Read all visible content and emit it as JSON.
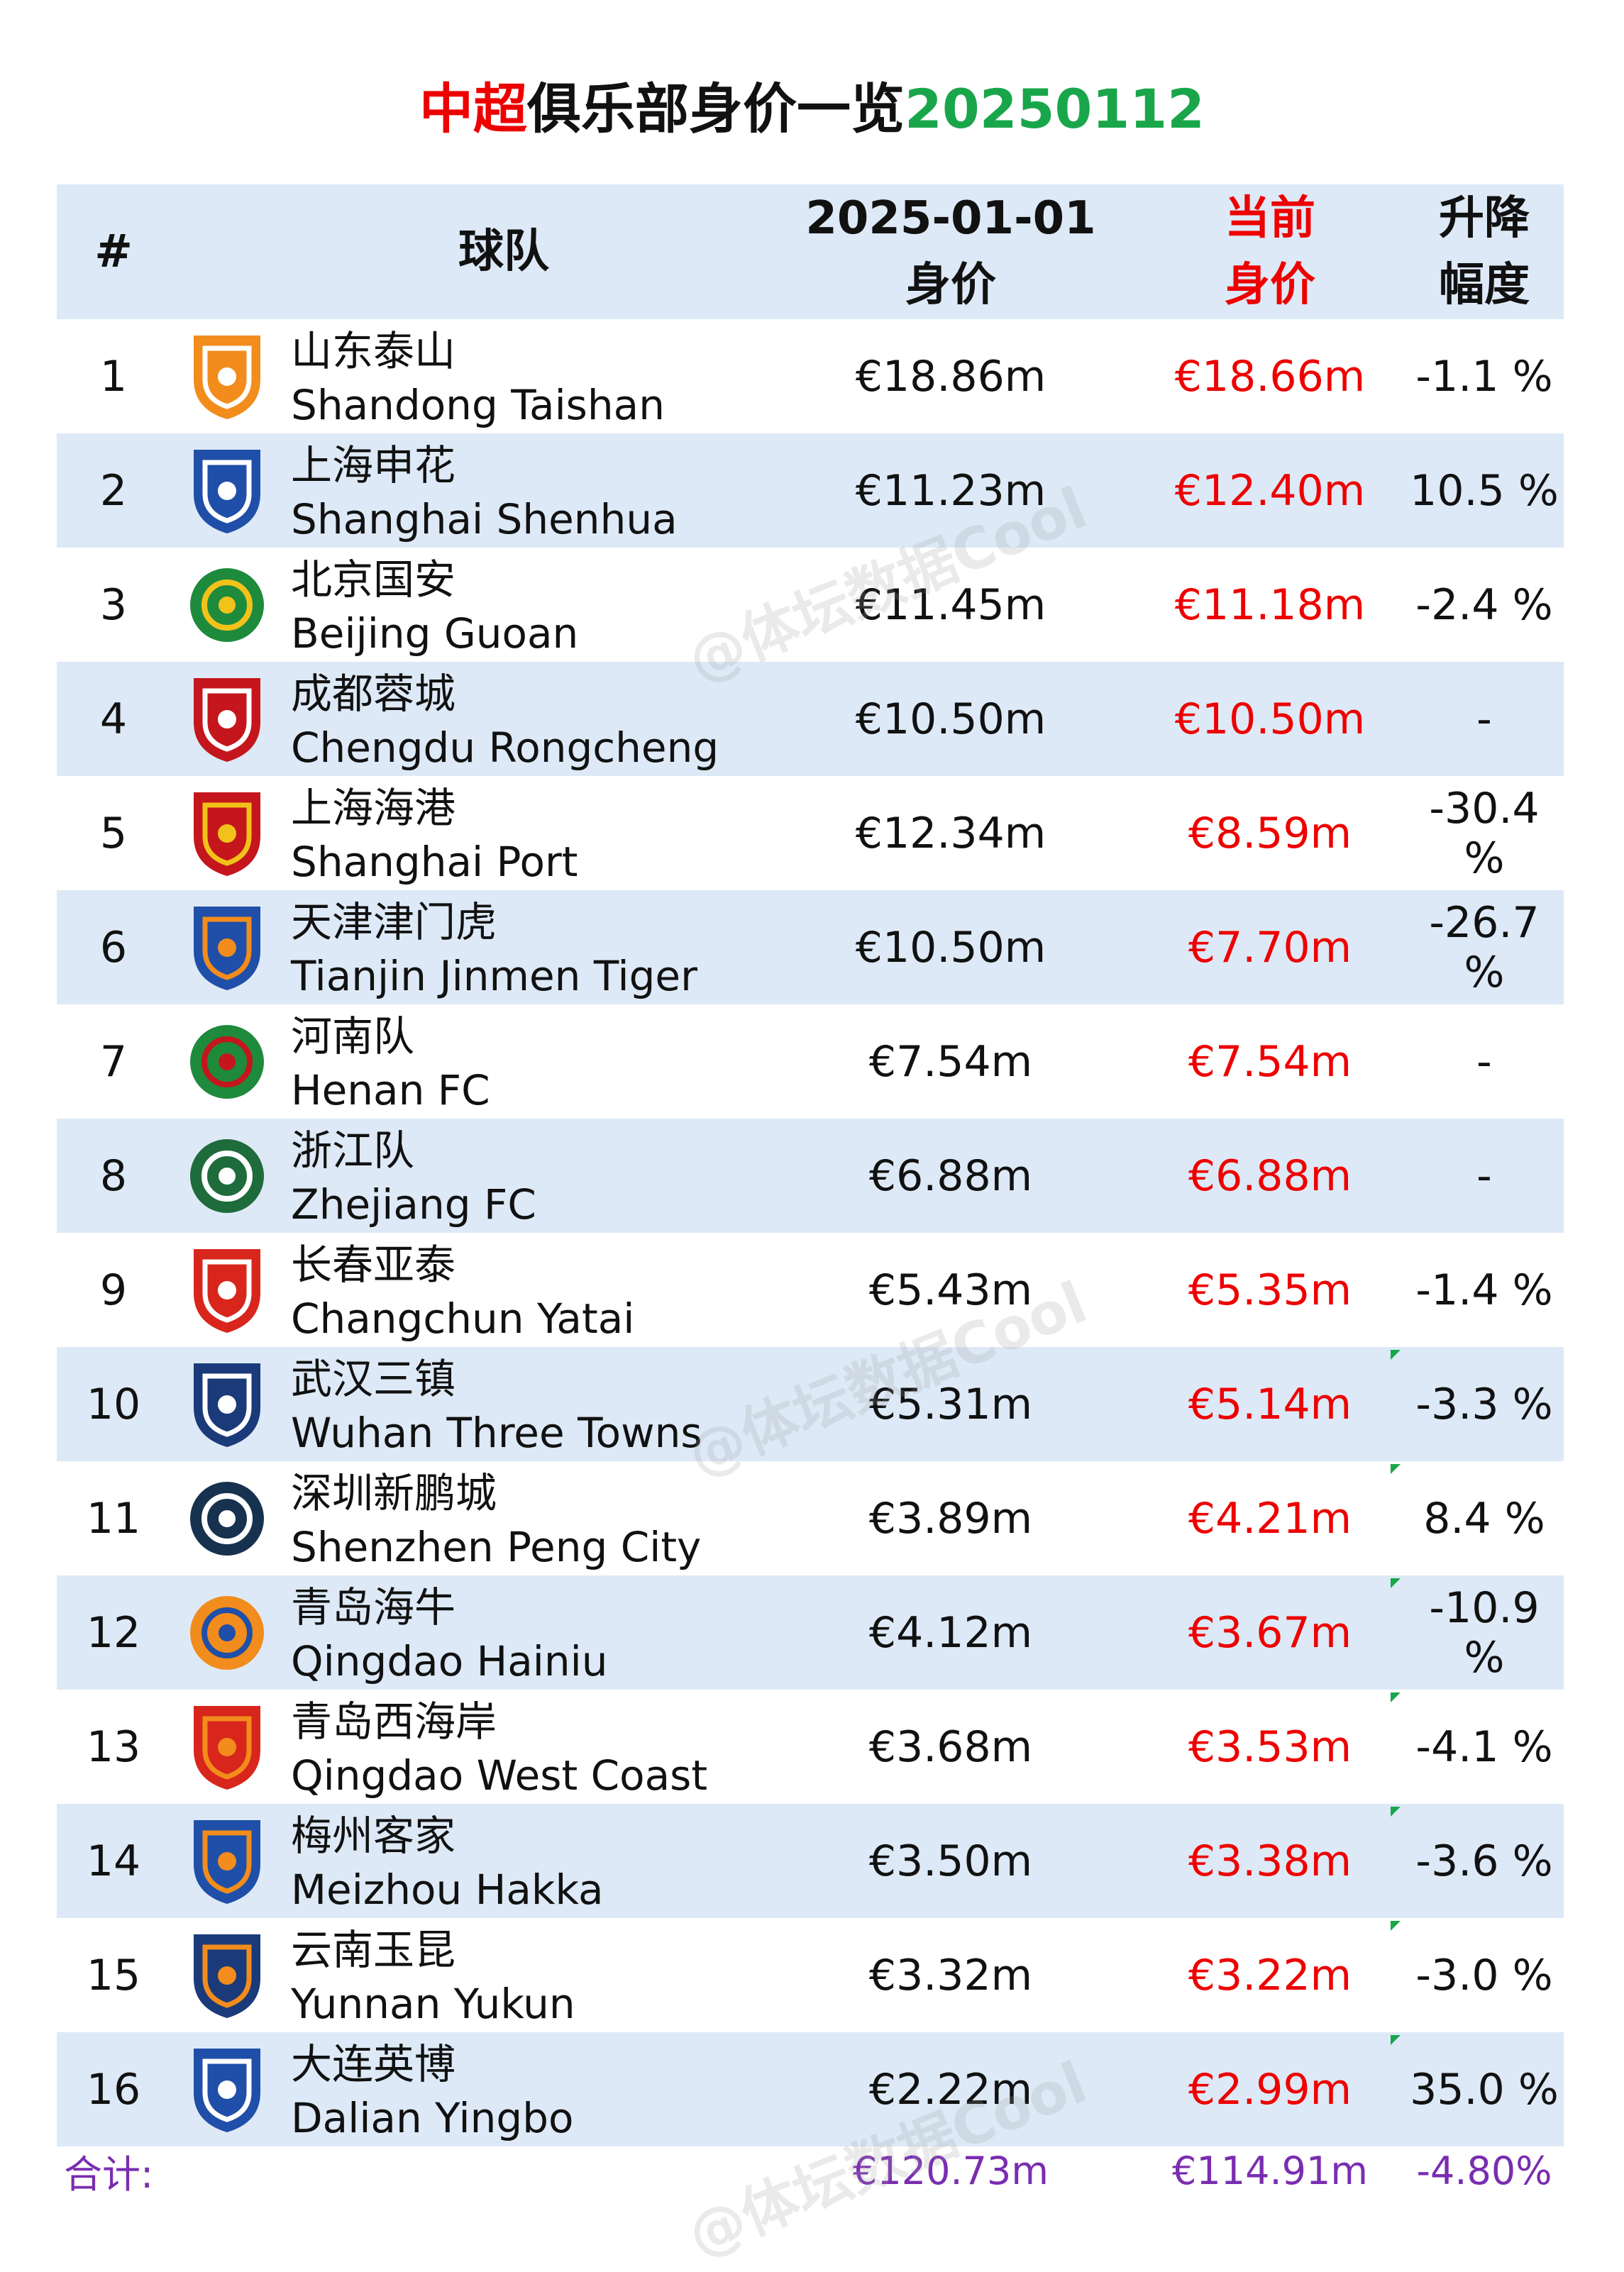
{
  "title": {
    "part1": "中超",
    "part2": "俱乐部身价一览",
    "part3": "20250112"
  },
  "header": {
    "num": "#",
    "team": "球队",
    "old_line1": "2025-01-01",
    "old_line2": "身价",
    "cur_line1": "当前",
    "cur_line2": "身价",
    "chg_line1": "升降",
    "chg_line2": "幅度"
  },
  "rows": [
    {
      "num": "1",
      "cn": "山东泰山",
      "en": "Shandong Taishan",
      "old": "€18.86m",
      "cur": "€18.66m",
      "chg": "-1.1 %",
      "logo": "shandong-taishan-logo"
    },
    {
      "num": "2",
      "cn": "上海申花",
      "en": "Shanghai Shenhua",
      "old": "€11.23m",
      "cur": "€12.40m",
      "chg": "10.5 %",
      "logo": "shanghai-shenhua-logo"
    },
    {
      "num": "3",
      "cn": "北京国安",
      "en": "Beijing Guoan",
      "old": "€11.45m",
      "cur": "€11.18m",
      "chg": "-2.4 %",
      "logo": "beijing-guoan-logo"
    },
    {
      "num": "4",
      "cn": "成都蓉城",
      "en": "Chengdu Rongcheng",
      "old": "€10.50m",
      "cur": "€10.50m",
      "chg": "-",
      "logo": "chengdu-rongcheng-logo"
    },
    {
      "num": "5",
      "cn": "上海海港",
      "en": "Shanghai Port",
      "old": "€12.34m",
      "cur": "€8.59m",
      "chg": "-30.4 %",
      "logo": "shanghai-port-logo"
    },
    {
      "num": "6",
      "cn": "天津津门虎",
      "en": "Tianjin Jinmen Tiger",
      "old": "€10.50m",
      "cur": "€7.70m",
      "chg": "-26.7 %",
      "logo": "tianjin-jinmen-tiger-logo"
    },
    {
      "num": "7",
      "cn": "河南队",
      "en": "Henan FC",
      "old": "€7.54m",
      "cur": "€7.54m",
      "chg": "-",
      "logo": "henan-fc-logo"
    },
    {
      "num": "8",
      "cn": "浙江队",
      "en": "Zhejiang FC",
      "old": "€6.88m",
      "cur": "€6.88m",
      "chg": "-",
      "logo": "zhejiang-fc-logo"
    },
    {
      "num": "9",
      "cn": "长春亚泰",
      "en": "Changchun Yatai",
      "old": "€5.43m",
      "cur": "€5.35m",
      "chg": "-1.4 %",
      "logo": "changchun-yatai-logo"
    },
    {
      "num": "10",
      "cn": "武汉三镇",
      "en": "Wuhan Three Towns",
      "old": "€5.31m",
      "cur": "€5.14m",
      "chg": "-3.3 %",
      "logo": "wuhan-three-towns-logo"
    },
    {
      "num": "11",
      "cn": "深圳新鹏城",
      "en": "Shenzhen Peng City",
      "old": "€3.89m",
      "cur": "€4.21m",
      "chg": "8.4 %",
      "logo": "shenzhen-peng-city-logo"
    },
    {
      "num": "12",
      "cn": "青岛海牛",
      "en": "Qingdao Hainiu",
      "old": "€4.12m",
      "cur": "€3.67m",
      "chg": "-10.9 %",
      "logo": "qingdao-hainiu-logo"
    },
    {
      "num": "13",
      "cn": "青岛西海岸",
      "en": "Qingdao West Coast",
      "old": "€3.68m",
      "cur": "€3.53m",
      "chg": "-4.1 %",
      "logo": "qingdao-west-coast-logo"
    },
    {
      "num": "14",
      "cn": "梅州客家",
      "en": "Meizhou Hakka",
      "old": "€3.50m",
      "cur": "€3.38m",
      "chg": "-3.6 %",
      "logo": "meizhou-hakka-logo"
    },
    {
      "num": "15",
      "cn": "云南玉昆",
      "en": "Yunnan Yukun",
      "old": "€3.32m",
      "cur": "€3.22m",
      "chg": "-3.0 %",
      "logo": "yunnan-yukun-logo"
    },
    {
      "num": "16",
      "cn": "大连英博",
      "en": "Dalian Yingbo",
      "old": "€2.22m",
      "cur": "€2.99m",
      "chg": "35.0 %",
      "logo": "dalian-yingbo-logo"
    }
  ],
  "total": {
    "label": "合计:",
    "old": "€120.73m",
    "cur": "€114.91m",
    "chg": "-4.80%"
  },
  "watermark": "@体坛数据Cool",
  "colors": {
    "accent_red": "#ee0000",
    "accent_green": "#19a64a",
    "row_shade": "#dde9f6",
    "total_purple": "#7a2db0"
  }
}
